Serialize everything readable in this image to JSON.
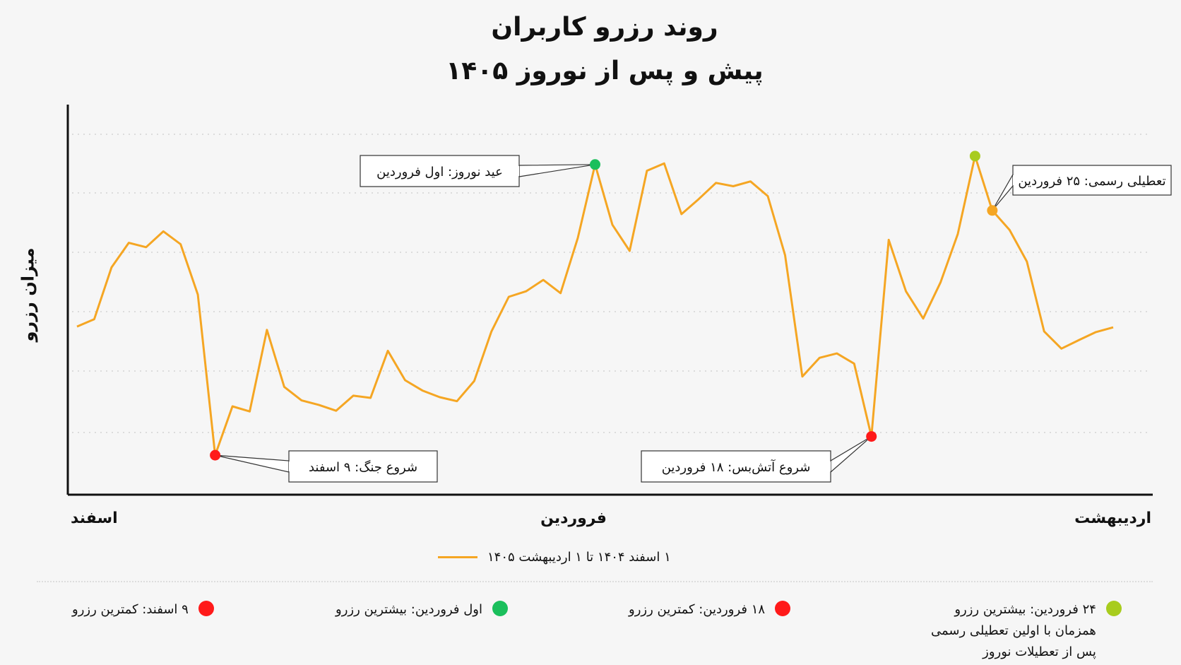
{
  "title_line1": "روند رزرو کاربران",
  "title_line2": "پیش و پس از نوروز ۱۴۰۵",
  "colors": {
    "series": "#f5a623",
    "red": "#ff1a1a",
    "green": "#1bbf5c",
    "lime": "#a8cc1e",
    "orange": "#f5a623"
  },
  "chart_data": {
    "type": "line",
    "ylabel": "میزان رزرو",
    "x_tick_labels": [
      "اسفند",
      "فروردین",
      "اردیبهشت"
    ],
    "grid": true,
    "ylim": [
      0,
      100
    ],
    "series": [
      {
        "name": "۱ اسفند ۱۴۰۴ تا ۱ اردیبهشت ۱۴۰۵",
        "values": [
          41.9,
          43.9,
          58.0,
          64.7,
          63.5,
          67.8,
          64.3,
          50.6,
          6.9,
          20.2,
          18.8,
          41.0,
          25.5,
          21.8,
          20.6,
          19.0,
          23.1,
          22.5,
          35.3,
          27.3,
          24.5,
          22.7,
          21.6,
          27.1,
          40.6,
          50.0,
          51.5,
          54.6,
          51.0,
          66.0,
          86.0,
          69.6,
          62.5,
          84.3,
          86.3,
          72.5,
          76.6,
          81.0,
          80.1,
          81.4,
          77.4,
          61.3,
          28.3,
          33.4,
          34.6,
          31.8,
          12.0,
          65.5,
          51.5,
          44.1,
          53.9,
          67.1,
          88.3,
          73.5,
          68.2,
          59.6,
          40.6,
          35.9,
          38.2,
          40.4,
          41.7
        ]
      }
    ],
    "annotations": [
      {
        "point_index": 8,
        "text": "شروع جنگ: ۹ اسفند",
        "marker_color": "#ff1a1a"
      },
      {
        "point_index": 30,
        "text": "عید نوروز: اول فروردین",
        "marker_color": "#1bbf5c"
      },
      {
        "point_index": 46,
        "text": "شروع آتش‌بس: ۱۸ فروردین",
        "marker_color": "#ff1a1a"
      },
      {
        "point_index": 52,
        "text": "",
        "marker_color": "#a8cc1e"
      },
      {
        "point_index": 53,
        "text": "تعطیلی رسمی: ۲۵ فروردین",
        "marker_color": "#f5a623"
      }
    ],
    "legend_placement": "bottom"
  },
  "marker_legend": [
    {
      "lines": [
        "۲۴ فروردین: بیشترین رزرو",
        "همزمان با اولین تعطیلی رسمی",
        "پس از تعطیلات نوروز"
      ],
      "color": "#a8cc1e"
    },
    {
      "lines": [
        "۱۸ فروردین: کمترین رزرو"
      ],
      "color": "#ff1a1a"
    },
    {
      "lines": [
        "اول فروردین: بیشترین رزرو"
      ],
      "color": "#1bbf5c"
    },
    {
      "lines": [
        "۹ اسفند: کمترین رزرو"
      ],
      "color": "#ff1a1a"
    }
  ]
}
